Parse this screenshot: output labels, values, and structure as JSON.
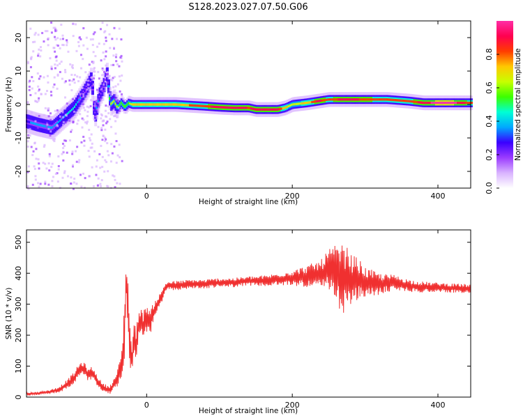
{
  "figure": {
    "title": "S128.2023.027.07.50.G06"
  },
  "chart_data": [
    {
      "type": "heatmap",
      "xlabel": "Height of straight line (km)",
      "ylabel": "Frequency (Hz)",
      "xlim": [
        -165,
        445
      ],
      "ylim": [
        -25,
        25
      ],
      "xticks": [
        0,
        200,
        400
      ],
      "yticks": [
        -20,
        -10,
        0,
        10,
        20
      ],
      "grid": false,
      "colorbar": {
        "label": "Normalized spectral amplitude",
        "range": [
          0.0,
          1.0
        ],
        "ticks": [
          0.0,
          0.2,
          0.4,
          0.6,
          0.8
        ],
        "colormap": "rainbow",
        "colors": [
          "#ffffff",
          "#d9b3ff",
          "#9b3cff",
          "#3a00ff",
          "#00a8ff",
          "#00ffd5",
          "#3cff00",
          "#c8ff00",
          "#ffc800",
          "#ff3c00",
          "#ff0050",
          "#ff2ea6"
        ]
      },
      "ridge": {
        "x": [
          -165,
          -150,
          -130,
          -115,
          -100,
          -88,
          -80,
          -76,
          -72,
          -68,
          -65,
          -60,
          -55,
          -50,
          -45,
          -40,
          -35,
          -30,
          -25,
          -20,
          0,
          40,
          80,
          100,
          120,
          140,
          150,
          160,
          180,
          190,
          200,
          220,
          235,
          250,
          270,
          300,
          330,
          360,
          380,
          400,
          420,
          445
        ],
        "freq_hz": [
          -5,
          -6,
          -7,
          -4,
          -1,
          3,
          6,
          8,
          -4,
          0,
          3,
          5,
          9,
          0,
          1,
          -1,
          0.5,
          -0.8,
          0.4,
          0,
          0,
          0,
          -0.5,
          -0.8,
          -1,
          -1,
          -1.5,
          -1.5,
          -1.5,
          -1,
          0,
          0.5,
          1,
          1.5,
          1.5,
          1.5,
          1.5,
          1,
          0.5,
          0.5,
          0.5,
          0.5
        ],
        "amplitude": [
          0.3,
          0.35,
          0.35,
          0.4,
          0.45,
          0.3,
          0.3,
          0.25,
          0.3,
          0.35,
          0.3,
          0.25,
          0.2,
          0.65,
          0.6,
          0.6,
          0.55,
          0.6,
          0.55,
          0.7,
          0.75,
          0.75,
          0.8,
          0.95,
          0.95,
          0.85,
          0.9,
          0.95,
          0.9,
          0.7,
          0.65,
          0.7,
          0.9,
          0.8,
          0.9,
          0.85,
          0.8,
          0.8,
          0.9,
          1.0,
          1.0,
          0.8
        ]
      }
    },
    {
      "type": "line",
      "xlabel": "Height of straight line (km)",
      "ylabel": "SNR (10 * v/v)",
      "xlim": [
        -165,
        445
      ],
      "ylim": [
        0,
        540
      ],
      "xticks": [
        0,
        200,
        400
      ],
      "yticks": [
        0,
        100,
        200,
        300,
        400,
        500
      ],
      "grid": false,
      "color": "#f03030",
      "series": [
        {
          "x": [
            -165,
            -150,
            -140,
            -130,
            -120,
            -110,
            -100,
            -95,
            -90,
            -85,
            -80,
            -75,
            -70,
            -65,
            -60,
            -55,
            -50,
            -45,
            -40,
            -35,
            -32,
            -30,
            -28,
            -26,
            -24,
            -22,
            -20,
            -18,
            -15,
            -10,
            -5,
            0,
            5,
            10,
            15,
            20,
            25,
            30,
            40,
            60,
            80,
            100,
            120,
            140,
            160,
            180,
            200,
            220,
            240,
            250,
            260,
            265,
            270,
            275,
            280,
            290,
            300,
            320,
            340,
            360,
            380,
            400,
            420,
            445
          ],
          "y": [
            10,
            12,
            15,
            18,
            25,
            40,
            60,
            80,
            95,
            90,
            70,
            80,
            60,
            45,
            30,
            25,
            25,
            40,
            60,
            100,
            160,
            250,
            380,
            300,
            220,
            150,
            110,
            200,
            160,
            250,
            230,
            260,
            240,
            280,
            300,
            320,
            350,
            360,
            360,
            365,
            365,
            370,
            370,
            375,
            375,
            380,
            385,
            390,
            395,
            410,
            400,
            390,
            380,
            385,
            375,
            380,
            370,
            365,
            370,
            360,
            355,
            355,
            352,
            350
          ],
          "spread": [
            5,
            5,
            5,
            8,
            10,
            15,
            20,
            20,
            20,
            20,
            20,
            20,
            20,
            15,
            15,
            15,
            15,
            20,
            30,
            40,
            60,
            120,
            60,
            100,
            100,
            60,
            40,
            60,
            60,
            50,
            40,
            50,
            40,
            30,
            25,
            20,
            20,
            15,
            15,
            15,
            15,
            15,
            15,
            15,
            18,
            20,
            25,
            35,
            50,
            70,
            90,
            110,
            110,
            100,
            90,
            70,
            50,
            35,
            25,
            20,
            18,
            15,
            15,
            15
          ]
        }
      ]
    }
  ]
}
